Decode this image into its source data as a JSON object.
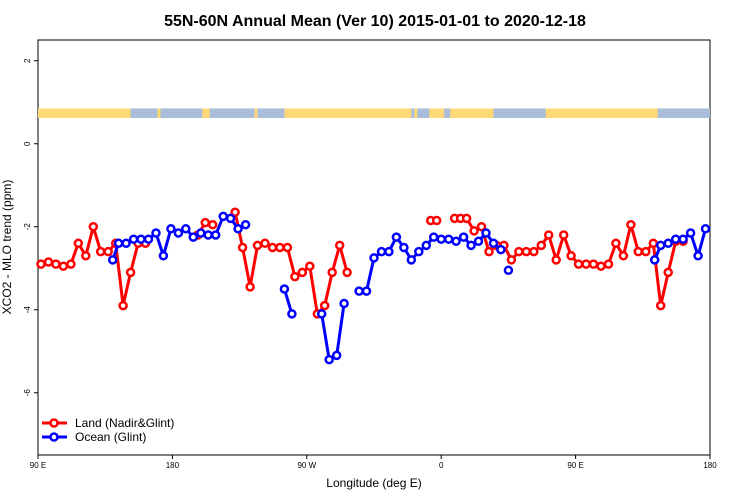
{
  "chart_data": {
    "type": "line",
    "title": "55N-60N Annual Mean (Ver 10)   2015-01-01 to 2020-12-18",
    "xlabel": "Longitude (deg E)",
    "ylabel": "XCO2 - MLO trend (ppm)",
    "xlim": [
      90,
      540
    ],
    "ylim": [
      -7.5,
      2.5
    ],
    "x_ticks": [
      {
        "value": 90,
        "label": "90 E"
      },
      {
        "value": 180,
        "label": "180"
      },
      {
        "value": 270,
        "label": "90 W"
      },
      {
        "value": 360,
        "label": "0"
      },
      {
        "value": 450,
        "label": "90 E"
      },
      {
        "value": 540,
        "label": "180"
      }
    ],
    "y_ticks": [
      {
        "value": -6,
        "label": "-6"
      },
      {
        "value": -4,
        "label": "-4"
      },
      {
        "value": -2,
        "label": "-2"
      },
      {
        "value": 0,
        "label": "0"
      },
      {
        "value": 2,
        "label": "2"
      }
    ],
    "grid": false,
    "legend": "bottom-left",
    "map_strip": {
      "y_range": [
        0.62,
        0.85
      ],
      "land_color": "#ffd878",
      "ocean_color": "#a9bddb"
    },
    "series": [
      {
        "name": "Land (Nadir&Glint)",
        "color": "#ff0000",
        "segments": [
          [
            [
              92,
              -2.9
            ],
            [
              97,
              -2.85
            ],
            [
              102,
              -2.9
            ],
            [
              107,
              -2.95
            ],
            [
              112,
              -2.9
            ],
            [
              117,
              -2.4
            ],
            [
              122,
              -2.7
            ],
            [
              127,
              -2.0
            ],
            [
              132,
              -2.6
            ],
            [
              137,
              -2.6
            ],
            [
              142,
              -2.4
            ],
            [
              147,
              -3.9
            ],
            [
              152,
              -3.1
            ],
            [
              157,
              -2.4
            ],
            [
              162,
              -2.4
            ]
          ],
          [
            [
              197,
              -2.2
            ],
            [
              202,
              -1.9
            ],
            [
              207,
              -1.95
            ]
          ],
          [
            [
              222,
              -1.65
            ],
            [
              227,
              -2.5
            ],
            [
              232,
              -3.45
            ],
            [
              237,
              -2.45
            ],
            [
              242,
              -2.4
            ],
            [
              247,
              -2.5
            ],
            [
              252,
              -2.5
            ],
            [
              257,
              -2.5
            ],
            [
              262,
              -3.2
            ],
            [
              267,
              -3.1
            ],
            [
              272,
              -2.95
            ],
            [
              277,
              -4.1
            ],
            [
              282,
              -3.9
            ],
            [
              287,
              -3.1
            ],
            [
              292,
              -2.45
            ],
            [
              297,
              -3.1
            ]
          ],
          [
            [
              353,
              -1.85
            ],
            [
              357,
              -1.85
            ]
          ],
          [
            [
              369,
              -1.8
            ],
            [
              373,
              -1.8
            ],
            [
              377,
              -1.8
            ],
            [
              382,
              -2.1
            ],
            [
              387,
              -2.0
            ],
            [
              392,
              -2.6
            ],
            [
              397,
              -2.45
            ],
            [
              402,
              -2.45
            ],
            [
              407,
              -2.8
            ],
            [
              412,
              -2.6
            ],
            [
              417,
              -2.6
            ],
            [
              422,
              -2.6
            ],
            [
              427,
              -2.45
            ],
            [
              432,
              -2.2
            ],
            [
              437,
              -2.8
            ],
            [
              442,
              -2.2
            ],
            [
              447,
              -2.7
            ],
            [
              452,
              -2.9
            ],
            [
              457,
              -2.9
            ],
            [
              462,
              -2.9
            ],
            [
              467,
              -2.95
            ],
            [
              472,
              -2.9
            ],
            [
              477,
              -2.4
            ],
            [
              482,
              -2.7
            ],
            [
              487,
              -1.95
            ],
            [
              492,
              -2.6
            ],
            [
              497,
              -2.6
            ],
            [
              502,
              -2.4
            ],
            [
              507,
              -3.9
            ],
            [
              512,
              -3.1
            ],
            [
              517,
              -2.35
            ],
            [
              522,
              -2.35
            ]
          ]
        ]
      },
      {
        "name": "Ocean (Glint)",
        "color": "#0000ff",
        "segments": [
          [
            [
              140,
              -2.8
            ],
            [
              144,
              -2.4
            ],
            [
              149,
              -2.4
            ],
            [
              154,
              -2.3
            ],
            [
              159,
              -2.3
            ],
            [
              164,
              -2.3
            ],
            [
              169,
              -2.15
            ],
            [
              174,
              -2.7
            ],
            [
              179,
              -2.05
            ],
            [
              184,
              -2.15
            ],
            [
              189,
              -2.05
            ],
            [
              194,
              -2.25
            ],
            [
              199,
              -2.15
            ],
            [
              204,
              -2.2
            ],
            [
              209,
              -2.2
            ],
            [
              214,
              -1.75
            ],
            [
              219,
              -1.8
            ],
            [
              224,
              -2.05
            ],
            [
              229,
              -1.95
            ]
          ],
          [
            [
              255,
              -3.5
            ],
            [
              260,
              -4.1
            ]
          ],
          [
            [
              280,
              -4.1
            ],
            [
              285,
              -5.2
            ],
            [
              290,
              -5.1
            ],
            [
              295,
              -3.85
            ]
          ],
          [
            [
              305,
              -3.55
            ],
            [
              310,
              -3.55
            ],
            [
              315,
              -2.75
            ],
            [
              320,
              -2.6
            ],
            [
              325,
              -2.6
            ],
            [
              330,
              -2.25
            ],
            [
              335,
              -2.5
            ],
            [
              340,
              -2.8
            ],
            [
              345,
              -2.6
            ],
            [
              350,
              -2.45
            ],
            [
              355,
              -2.25
            ],
            [
              360,
              -2.3
            ],
            [
              365,
              -2.3
            ],
            [
              370,
              -2.35
            ],
            [
              375,
              -2.25
            ],
            [
              380,
              -2.45
            ],
            [
              385,
              -2.35
            ],
            [
              390,
              -2.15
            ],
            [
              395,
              -2.4
            ],
            [
              400,
              -2.55
            ]
          ],
          [
            [
              405,
              -3.05
            ]
          ],
          [
            [
              503,
              -2.8
            ],
            [
              507,
              -2.45
            ],
            [
              512,
              -2.4
            ],
            [
              517,
              -2.3
            ],
            [
              522,
              -2.3
            ],
            [
              527,
              -2.15
            ],
            [
              532,
              -2.7
            ],
            [
              537,
              -2.05
            ]
          ]
        ]
      }
    ]
  }
}
